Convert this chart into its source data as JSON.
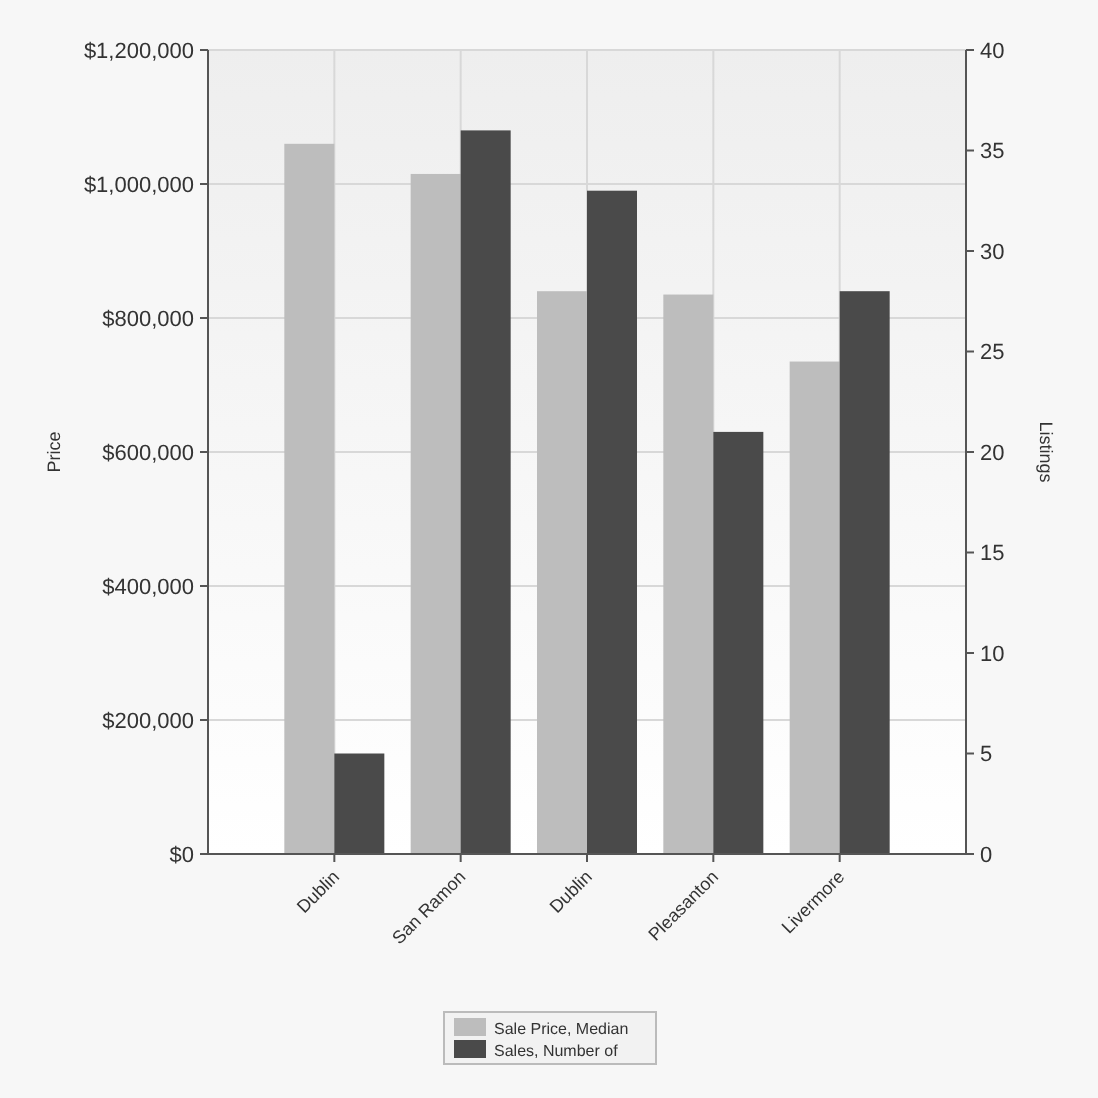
{
  "chart_data": {
    "type": "bar",
    "categories": [
      "Dublin",
      "San Ramon",
      "Dublin",
      "Pleasanton",
      "Livermore"
    ],
    "series": [
      {
        "name": "Sale Price, Median",
        "color": "#bdbdbd",
        "values": [
          1060000,
          1015000,
          840000,
          835000,
          735000
        ]
      },
      {
        "name": "Sales, Number of",
        "color": "#4a4a4a",
        "values": [
          5,
          36,
          33,
          21,
          28
        ],
        "axis": "y2"
      }
    ],
    "ylabel": "Price",
    "y2label": "Listings",
    "ylim": [
      0,
      1200000
    ],
    "yticks": [
      {
        "value": 0,
        "label": "$0"
      },
      {
        "value": 200000,
        "label": "$200,000"
      },
      {
        "value": 400000,
        "label": "$400,000"
      },
      {
        "value": 600000,
        "label": "$600,000"
      },
      {
        "value": 800000,
        "label": "$800,000"
      },
      {
        "value": 1000000,
        "label": "$1,000,000"
      },
      {
        "value": 1200000,
        "label": "$1,200,000"
      }
    ],
    "y2lim": [
      0,
      40
    ],
    "y2ticks": [
      0,
      5,
      10,
      15,
      20,
      25,
      30,
      35,
      40
    ],
    "grid": true,
    "legend": "bottom"
  }
}
